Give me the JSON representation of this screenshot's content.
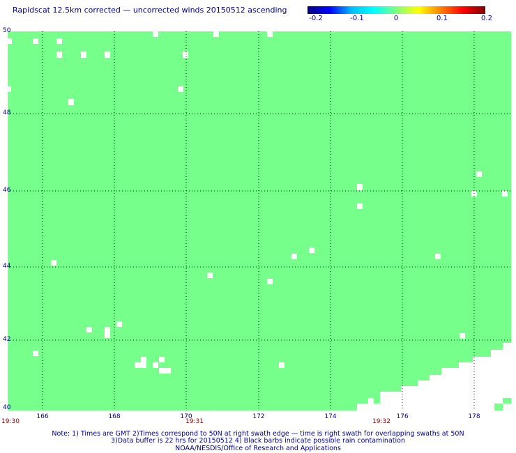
{
  "title": "Rapidscat 12.5km corrected — uncorrected winds 20150512 ascending",
  "colorbar": {
    "labels": [
      "-0.2",
      "-0.1",
      "0",
      "0.1",
      "0.2"
    ],
    "range": [
      -0.2,
      0.2
    ]
  },
  "map": {
    "fill_color": "#77ff8b",
    "lat_range": [
      40,
      50
    ],
    "lon_range": [
      165,
      179
    ],
    "lat_labels": [
      "50",
      "48",
      "46",
      "44",
      "42",
      "40"
    ],
    "lon_labels": [
      "166",
      "168",
      "170",
      "172",
      "174",
      "176",
      "178"
    ],
    "time_labels": [
      "19:30",
      "19:31",
      "19:32"
    ]
  },
  "notes": {
    "line1": "Note: 1) Times are GMT 2)Times correspond to 50N at right swath edge — time is right swath for overlapping swaths at 50N",
    "line2": "3)Data buffer is 22 hrs for 20150512 4) Black barbs indicate possible rain contamination",
    "line3": "NOAA/NESDIS/Office of Research and Applications"
  }
}
